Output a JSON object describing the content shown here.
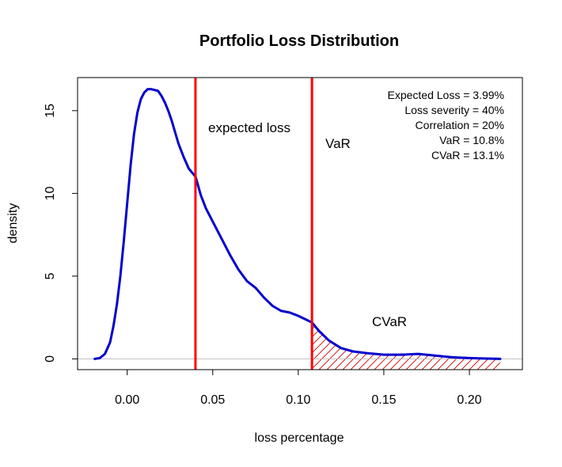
{
  "chart_data": {
    "type": "line",
    "title": "Portfolio Loss Distribution",
    "xlabel": "loss percentage",
    "ylabel": "density",
    "xlim": [
      -0.029,
      0.231
    ],
    "ylim": [
      -0.65,
      17.0
    ],
    "x_ticks": [
      0.0,
      0.05,
      0.1,
      0.15,
      0.2
    ],
    "x_tick_labels": [
      "0.00",
      "0.05",
      "0.10",
      "0.15",
      "0.20"
    ],
    "y_ticks": [
      0,
      5,
      10,
      15
    ],
    "y_tick_labels": [
      "0",
      "5",
      "10",
      "15"
    ],
    "grid": false,
    "series": [
      {
        "color": "#0000CD",
        "x": [
          -0.019,
          -0.016,
          -0.013,
          -0.01,
          -0.008,
          -0.006,
          -0.004,
          -0.002,
          0.0,
          0.002,
          0.004,
          0.006,
          0.008,
          0.01,
          0.012,
          0.014,
          0.016,
          0.018,
          0.02,
          0.022,
          0.024,
          0.026,
          0.028,
          0.03,
          0.033,
          0.036,
          0.04,
          0.043,
          0.046,
          0.05,
          0.055,
          0.06,
          0.065,
          0.07,
          0.075,
          0.08,
          0.085,
          0.09,
          0.095,
          0.1,
          0.105,
          0.108,
          0.112,
          0.118,
          0.125,
          0.132,
          0.14,
          0.15,
          0.16,
          0.17,
          0.18,
          0.19,
          0.2,
          0.21,
          0.218
        ],
        "y": [
          0.0,
          0.05,
          0.3,
          1.0,
          2.0,
          3.3,
          5.0,
          7.1,
          9.4,
          11.7,
          13.6,
          14.9,
          15.7,
          16.1,
          16.3,
          16.3,
          16.25,
          16.2,
          15.9,
          15.5,
          15.0,
          14.4,
          13.7,
          13.0,
          12.2,
          11.5,
          11.0,
          9.9,
          9.1,
          8.3,
          7.3,
          6.3,
          5.4,
          4.7,
          4.3,
          3.7,
          3.2,
          2.9,
          2.8,
          2.6,
          2.35,
          2.2,
          1.7,
          1.1,
          0.65,
          0.45,
          0.35,
          0.25,
          0.25,
          0.3,
          0.2,
          0.1,
          0.05,
          0.02,
          0.0
        ]
      }
    ],
    "reference_lines": [
      {
        "x": 0.0399,
        "color": "#FF0000",
        "label": "expected loss"
      },
      {
        "x": 0.108,
        "color": "#FF0000",
        "label": "VaR"
      }
    ],
    "shaded_region": {
      "x_from": 0.108,
      "x_to": 0.218,
      "pattern": "hatch",
      "color": "#CC0000",
      "label": "CVaR"
    },
    "stats": [
      "Expected Loss = 3.99%",
      "Loss severity = 40%",
      "Correlation = 20%",
      "VaR = 10.8%",
      "CVaR = 13.1%"
    ]
  }
}
